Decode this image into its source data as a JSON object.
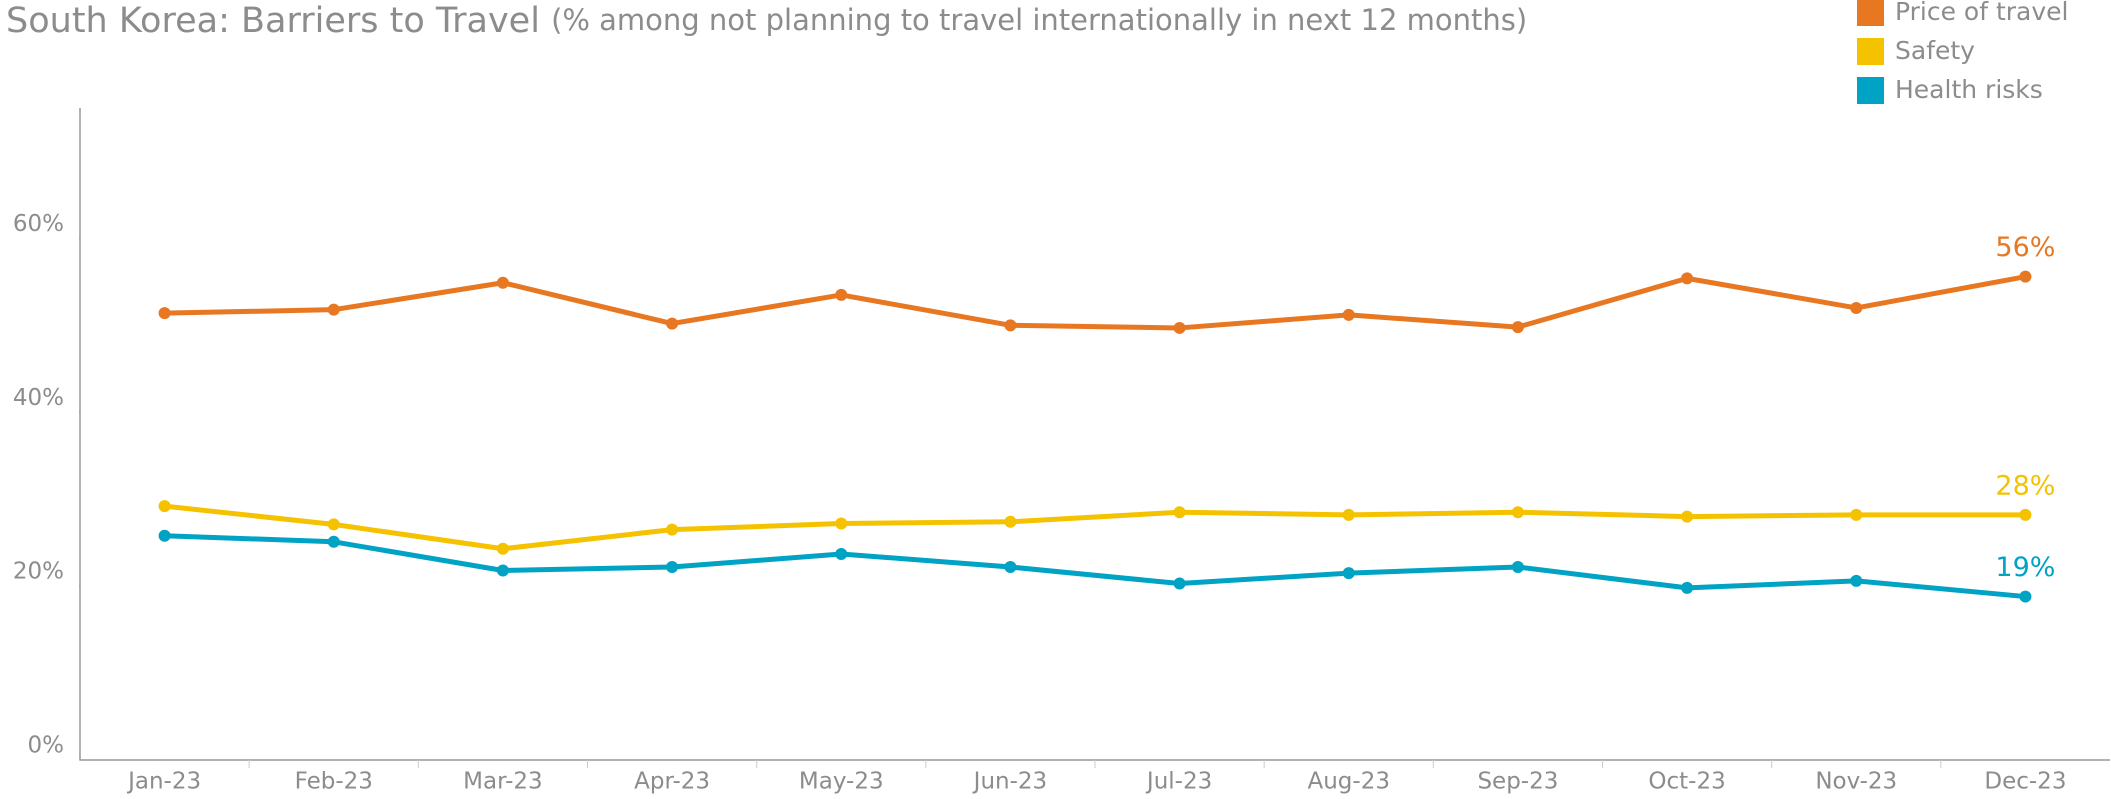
{
  "chart_data": {
    "type": "line",
    "title": "South Korea: Barriers to Travel",
    "subtitle": "(% among not planning to travel internationally in next 12 months)",
    "categories": [
      "Jan-23",
      "Feb-23",
      "Mar-23",
      "Apr-23",
      "May-23",
      "Jun-23",
      "Jul-23",
      "Aug-23",
      "Sep-23",
      "Oct-23",
      "Nov-23",
      "Dec-23"
    ],
    "series": [
      {
        "name": "Price of travel",
        "color": "#e87722",
        "values": [
          51.4,
          51.8,
          54.9,
          50.2,
          53.5,
          50.0,
          49.7,
          51.2,
          49.8,
          55.4,
          52.0,
          55.6
        ],
        "value_labels": [
          null,
          null,
          null,
          null,
          null,
          null,
          null,
          null,
          null,
          null,
          null,
          "56%"
        ]
      },
      {
        "name": "Safety",
        "color": "#f5c200",
        "values": [
          29.2,
          27.1,
          24.3,
          26.5,
          27.2,
          27.4,
          28.5,
          28.2,
          28.5,
          28.0,
          28.2,
          28.2
        ],
        "value_labels": [
          null,
          null,
          null,
          null,
          null,
          null,
          null,
          null,
          null,
          null,
          null,
          "28%"
        ]
      },
      {
        "name": "Health risks",
        "color": "#00a3c4",
        "values": [
          25.8,
          25.1,
          21.8,
          22.2,
          23.7,
          22.2,
          20.3,
          21.5,
          22.2,
          19.8,
          20.6,
          18.8
        ],
        "value_labels": [
          null,
          null,
          null,
          null,
          null,
          null,
          null,
          null,
          null,
          null,
          null,
          "19%"
        ]
      }
    ],
    "ylim": [
      0,
      75
    ],
    "yticks": [
      {
        "value": 0,
        "label": "0%"
      },
      {
        "value": 20,
        "label": "20%"
      },
      {
        "value": 40,
        "label": "40%"
      },
      {
        "value": 60,
        "label": "60%"
      }
    ],
    "legend": "top-right",
    "grid": false
  }
}
